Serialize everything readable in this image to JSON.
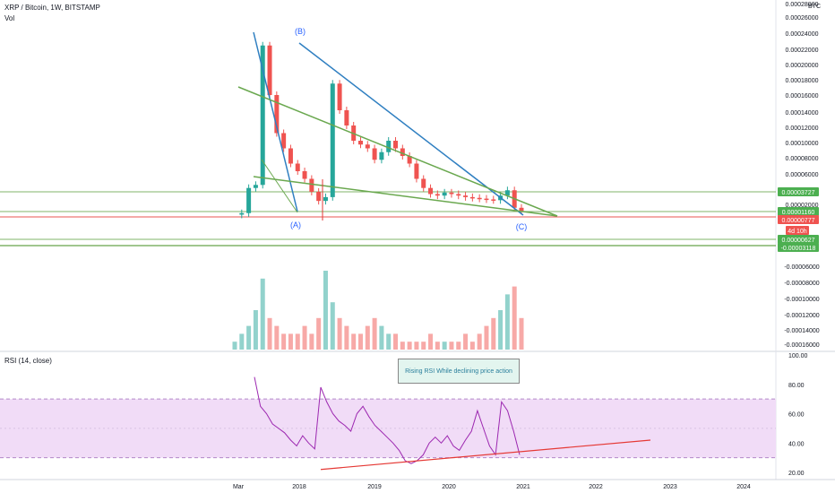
{
  "header": {
    "symbol_line": "XRP / Bitcoin, 1W, BITSTAMP",
    "vol_label": "Vol",
    "currency": "BTC",
    "rsi_label": "RSI (14, close)"
  },
  "annotation": {
    "rsi_note": "Rising RSI While declining price action"
  },
  "wave_labels": {
    "a": "(A)",
    "b": "(B)",
    "c": "(C)"
  },
  "badges": {
    "level_high": "0.00003727",
    "level_mid": "0.00001160",
    "last_price": "0.00000777",
    "countdown": "4d 10h",
    "level_low": "0.00000627",
    "level_neg": "-0.00003118"
  },
  "colors": {
    "up": "#26a69a",
    "down": "#ef5350",
    "trend_blue": "#2f7fc1",
    "trend_green": "#6aa84f",
    "rsi_line": "#9c27b0",
    "rsi_band": "#f1dcf7",
    "support_red": "#e53935"
  },
  "chart_data": [
    {
      "type": "candlestick",
      "title": "XRP / Bitcoin, 1W, BITSTAMP",
      "x_ticks": [
        "Mar",
        "2018",
        "2019",
        "2020",
        "2021",
        "2022",
        "2023",
        "2024"
      ],
      "y_ticks": [
        "0.00028000",
        "0.00026000",
        "0.00024000",
        "0.00022000",
        "0.00020000",
        "0.00018000",
        "0.00016000",
        "0.00014000",
        "0.00012000",
        "0.00010000",
        "0.00008000",
        "0.00006000",
        "0.00002000",
        "-0.00006000",
        "-0.00008000",
        "-0.00010000",
        "-0.00012000",
        "-0.00014000",
        "-0.00016000"
      ],
      "approx_close_series": [
        3e-06,
        5e-06,
        3.8e-05,
        4.2e-05,
        0.000225,
        0.00016,
        0.00011,
        9e-05,
        7e-05,
        6e-05,
        5e-05,
        3.3e-05,
        2.1e-05,
        2.6e-05,
        0.000175,
        0.00014,
        0.00012,
        0.0001,
        9.5e-05,
        9e-05,
        7.5e-05,
        8.5e-05,
        0.0001,
        9e-05,
        8e-05,
        7e-05,
        5e-05,
        3.8e-05,
        3e-05,
        2.8e-05,
        3.2e-05,
        3e-05,
        2.8e-05,
        2.6e-05,
        2.5e-05,
        2.4e-05,
        2.3e-05,
        2.2e-05,
        2.8e-05,
        3.5e-05,
        1.2e-05,
        7.8e-06
      ],
      "trendlines": [
        "blue A-B",
        "blue B-C",
        "green upper wedge",
        "green lower wedge",
        "horizontal levels"
      ]
    },
    {
      "type": "bar",
      "title": "Vol",
      "y_ticks": [
        "-0.00006000",
        "-0.00008000",
        "-0.00010000",
        "-0.00012000",
        "-0.00014000",
        "-0.00016000"
      ],
      "relative_volume": [
        1,
        2,
        3,
        5,
        9,
        4,
        3,
        2,
        2,
        2,
        3,
        2,
        4,
        10,
        6,
        4,
        3,
        2,
        2,
        3,
        4,
        3,
        2,
        2,
        1,
        1,
        1,
        1,
        2,
        1,
        1,
        1,
        1,
        2,
        1,
        2,
        3,
        4,
        5,
        7,
        8,
        4
      ]
    },
    {
      "type": "line",
      "title": "RSI (14, close)",
      "y_ticks": [
        "100.00",
        "80.00",
        "60.00",
        "40.00",
        "20.00"
      ],
      "ylim": [
        20,
        100
      ],
      "band": [
        30,
        70
      ],
      "values": [
        85,
        65,
        60,
        53,
        50,
        47,
        42,
        38,
        45,
        40,
        36,
        78,
        68,
        60,
        55,
        52,
        48,
        60,
        65,
        58,
        52,
        48,
        44,
        40,
        35,
        28,
        26,
        28,
        32,
        40,
        44,
        40,
        45,
        38,
        35,
        42,
        48,
        62,
        50,
        38,
        32,
        68,
        62,
        48,
        32
      ],
      "support_line": [
        22,
        42
      ]
    }
  ]
}
